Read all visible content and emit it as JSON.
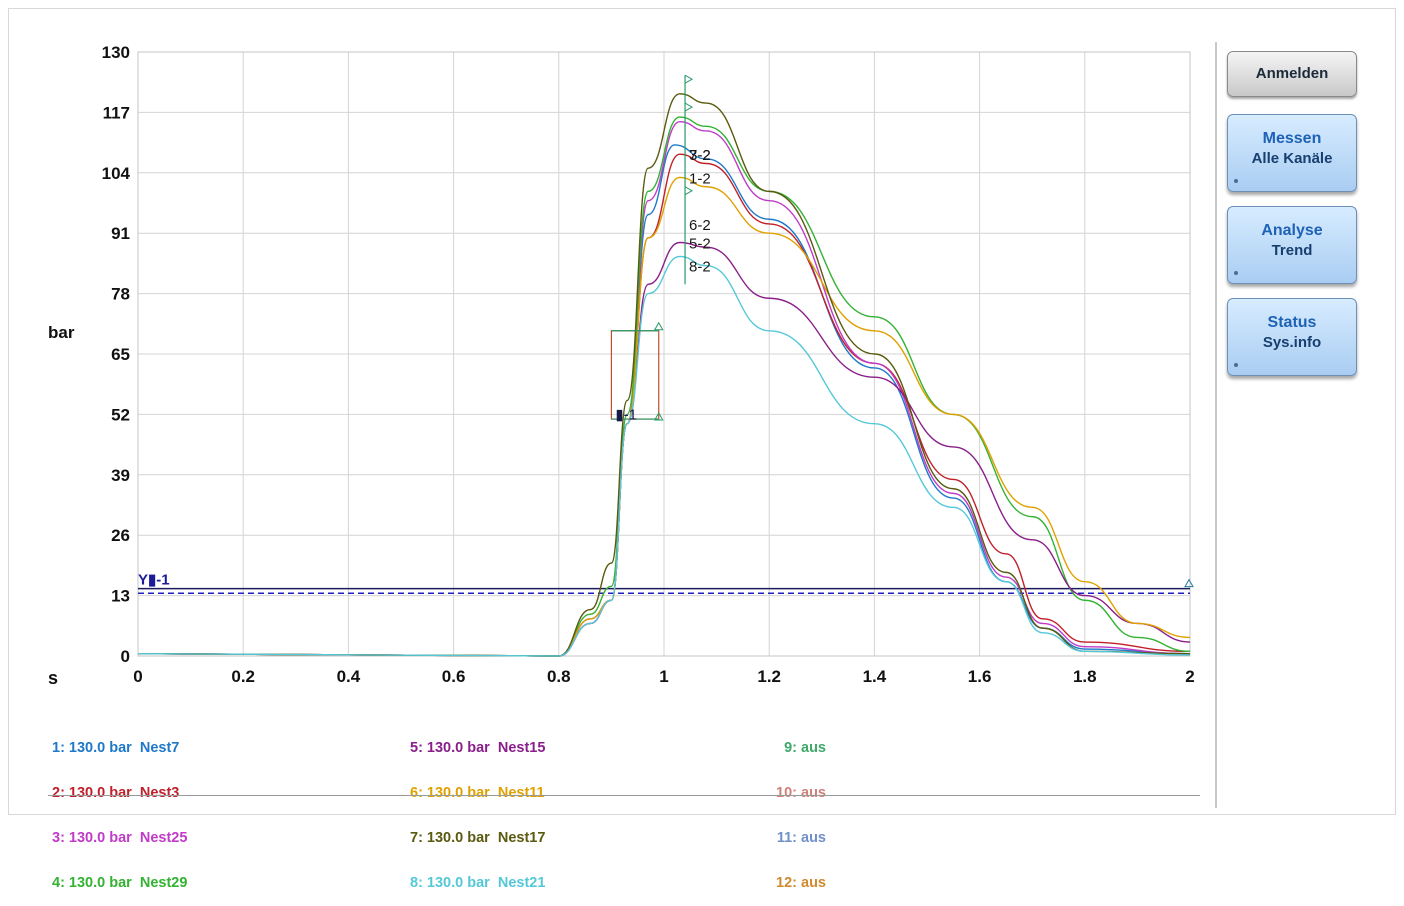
{
  "buttons": {
    "login": "Anmelden",
    "measure": {
      "line1": "Messen",
      "line2": "Alle Kanäle"
    },
    "analysis": {
      "line1": "Analyse",
      "line2": "Trend"
    },
    "status": {
      "line1": "Status",
      "line2": "Sys.info"
    }
  },
  "legend": {
    "col1": [
      {
        "label": "1: 130.0 bar  Nest7",
        "color": "#1f78c8"
      },
      {
        "label": "2: 130.0 bar  Nest3",
        "color": "#c0202a"
      },
      {
        "label": "3: 130.0 bar  Nest25",
        "color": "#c03cc8"
      },
      {
        "label": "4: 130.0 bar  Nest29",
        "color": "#33b233"
      }
    ],
    "col2": [
      {
        "label": "5: 130.0 bar  Nest15",
        "color": "#8a1f8a"
      },
      {
        "label": "6: 130.0 bar  Nest11",
        "color": "#e0a000"
      },
      {
        "label": "7: 130.0 bar  Nest17",
        "color": "#5a5a10"
      },
      {
        "label": "8: 130.0 bar  Nest21",
        "color": "#55c8d8"
      }
    ],
    "col3": [
      {
        "label": "9: aus",
        "color": "#3fa86a"
      },
      {
        "label": "10: aus",
        "color": "#d0807a"
      },
      {
        "label": "11: aus",
        "color": "#6f8fc8"
      },
      {
        "label": "12: aus",
        "color": "#d08a30"
      }
    ]
  },
  "chart_data": {
    "type": "line",
    "ylabel": "bar",
    "xlabel": "s",
    "xlim": [
      0,
      2
    ],
    "ylim": [
      0,
      130
    ],
    "xticks": [
      "0",
      "0.2",
      "0.4",
      "0.6",
      "0.8",
      "1",
      "1.2",
      "1.4",
      "1.6",
      "1.8",
      "2"
    ],
    "yticks": [
      "0",
      "13",
      "26",
      "39",
      "52",
      "65",
      "78",
      "91",
      "104",
      "117",
      "130"
    ],
    "grid": true,
    "series": [
      {
        "name": "Nest7",
        "color": "#1f78c8",
        "points": [
          [
            0,
            0.5
          ],
          [
            0.8,
            0
          ],
          [
            0.86,
            7
          ],
          [
            0.9,
            12
          ],
          [
            0.93,
            50
          ],
          [
            0.97,
            95
          ],
          [
            1.02,
            110
          ],
          [
            1.08,
            107
          ],
          [
            1.2,
            94
          ],
          [
            1.4,
            62
          ],
          [
            1.55,
            34
          ],
          [
            1.65,
            16
          ],
          [
            1.72,
            6
          ],
          [
            1.8,
            1.5
          ],
          [
            2,
            0.5
          ]
        ]
      },
      {
        "name": "Nest3",
        "color": "#c0202a",
        "points": [
          [
            0,
            0.5
          ],
          [
            0.8,
            0
          ],
          [
            0.86,
            7
          ],
          [
            0.9,
            12
          ],
          [
            0.93,
            50
          ],
          [
            0.97,
            90
          ],
          [
            1.03,
            108
          ],
          [
            1.08,
            106
          ],
          [
            1.2,
            93
          ],
          [
            1.4,
            63
          ],
          [
            1.55,
            38
          ],
          [
            1.65,
            22
          ],
          [
            1.72,
            8
          ],
          [
            1.8,
            3
          ],
          [
            2,
            1
          ]
        ]
      },
      {
        "name": "Nest25",
        "color": "#c03cc8",
        "points": [
          [
            0,
            0.5
          ],
          [
            0.8,
            0
          ],
          [
            0.86,
            7
          ],
          [
            0.9,
            12
          ],
          [
            0.93,
            50
          ],
          [
            0.97,
            98
          ],
          [
            1.03,
            115
          ],
          [
            1.08,
            113
          ],
          [
            1.2,
            98
          ],
          [
            1.4,
            63
          ],
          [
            1.55,
            35
          ],
          [
            1.65,
            17
          ],
          [
            1.72,
            7
          ],
          [
            1.8,
            2
          ],
          [
            2,
            0.5
          ]
        ]
      },
      {
        "name": "Nest29",
        "color": "#33b233",
        "points": [
          [
            0,
            0.5
          ],
          [
            0.8,
            0
          ],
          [
            0.86,
            9
          ],
          [
            0.9,
            15
          ],
          [
            0.93,
            52
          ],
          [
            0.97,
            100
          ],
          [
            1.03,
            116
          ],
          [
            1.08,
            114
          ],
          [
            1.2,
            100
          ],
          [
            1.4,
            73
          ],
          [
            1.55,
            52
          ],
          [
            1.7,
            30
          ],
          [
            1.8,
            12
          ],
          [
            1.9,
            4
          ],
          [
            2,
            1
          ]
        ]
      },
      {
        "name": "Nest15",
        "color": "#8a1f8a",
        "points": [
          [
            0,
            0.5
          ],
          [
            0.8,
            0
          ],
          [
            0.86,
            8
          ],
          [
            0.9,
            12
          ],
          [
            0.93,
            50
          ],
          [
            0.97,
            80
          ],
          [
            1.03,
            89
          ],
          [
            1.08,
            88
          ],
          [
            1.2,
            77
          ],
          [
            1.4,
            60
          ],
          [
            1.55,
            45
          ],
          [
            1.7,
            25
          ],
          [
            1.8,
            13
          ],
          [
            1.9,
            7
          ],
          [
            2,
            3
          ]
        ]
      },
      {
        "name": "Nest11",
        "color": "#e0a000",
        "points": [
          [
            0,
            0.5
          ],
          [
            0.8,
            0
          ],
          [
            0.86,
            8
          ],
          [
            0.9,
            12
          ],
          [
            0.93,
            50
          ],
          [
            0.97,
            90
          ],
          [
            1.03,
            103
          ],
          [
            1.08,
            101
          ],
          [
            1.2,
            91
          ],
          [
            1.4,
            70
          ],
          [
            1.55,
            52
          ],
          [
            1.7,
            32
          ],
          [
            1.8,
            16
          ],
          [
            1.9,
            7
          ],
          [
            2,
            4
          ]
        ]
      },
      {
        "name": "Nest17",
        "color": "#5a5a10",
        "points": [
          [
            0,
            0.5
          ],
          [
            0.8,
            0
          ],
          [
            0.86,
            10
          ],
          [
            0.9,
            20
          ],
          [
            0.93,
            55
          ],
          [
            0.97,
            105
          ],
          [
            1.03,
            121
          ],
          [
            1.08,
            119
          ],
          [
            1.2,
            100
          ],
          [
            1.4,
            65
          ],
          [
            1.55,
            36
          ],
          [
            1.65,
            18
          ],
          [
            1.72,
            6
          ],
          [
            1.8,
            1
          ],
          [
            2,
            0.5
          ]
        ]
      },
      {
        "name": "Nest21",
        "color": "#55c8d8",
        "points": [
          [
            0,
            0.5
          ],
          [
            0.8,
            0
          ],
          [
            0.86,
            7
          ],
          [
            0.9,
            12
          ],
          [
            0.93,
            50
          ],
          [
            0.97,
            78
          ],
          [
            1.03,
            86
          ],
          [
            1.08,
            84
          ],
          [
            1.2,
            70
          ],
          [
            1.4,
            50
          ],
          [
            1.55,
            32
          ],
          [
            1.65,
            16
          ],
          [
            1.72,
            5
          ],
          [
            1.8,
            1
          ],
          [
            2,
            0.2
          ]
        ]
      }
    ],
    "threshold_solid": 14.5,
    "threshold_dashed": 13.5,
    "threshold_label": "Y▮-1",
    "window_label": "▮-1",
    "window": {
      "x0": 0.9,
      "x1": 0.99,
      "y0": 51,
      "y1": 70
    },
    "cursor_x": 1.04,
    "cursor_labels": [
      "7-2",
      "3-2",
      "1-2",
      "6-2",
      "5-2",
      "8-2"
    ],
    "cursor_label_values": [
      108,
      108,
      103,
      93,
      89,
      84
    ]
  }
}
